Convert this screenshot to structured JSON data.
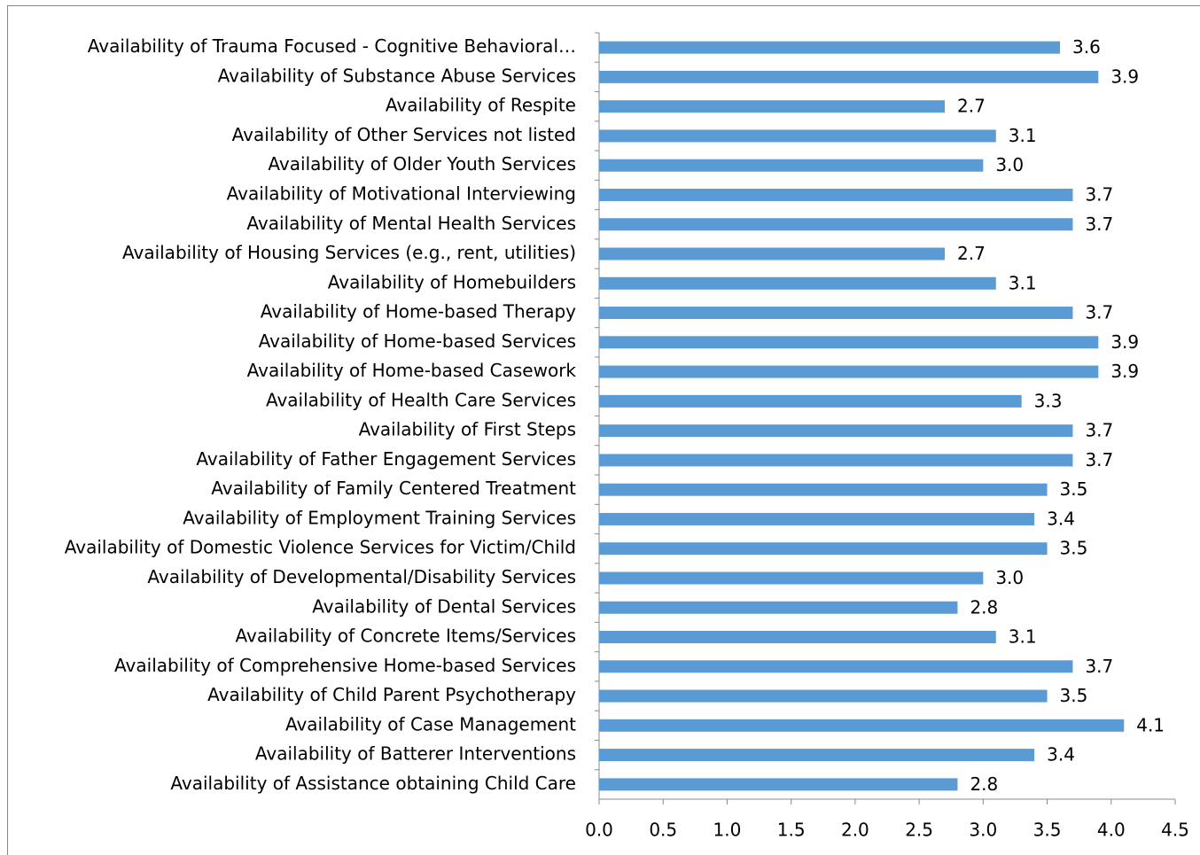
{
  "chart_data": {
    "type": "barh",
    "categories": [
      "Availability of Trauma Focused - Cognitive Behavioral…",
      "Availability of Substance Abuse Services",
      "Availability of Respite",
      "Availability of Other Services not listed",
      "Availability of Older Youth Services",
      "Availability of Motivational Interviewing",
      "Availability of Mental Health Services",
      "Availability of Housing Services (e.g., rent, utilities)",
      "Availability of Homebuilders",
      "Availability of Home-based Therapy",
      "Availability of Home-based Services",
      "Availability of Home-based Casework",
      "Availability of Health Care Services",
      "Availability of First Steps",
      "Availability of Father Engagement Services",
      "Availability of Family Centered Treatment",
      "Availability of Employment Training Services",
      "Availability of Domestic Violence Services for Victim/Child",
      "Availability of Developmental/Disability Services",
      "Availability of Dental Services",
      "Availability of Concrete Items/Services",
      "Availability of Comprehensive Home-based Services",
      "Availability of Child Parent Psychotherapy",
      "Availability of Case Management",
      "Availability of Batterer Interventions",
      "Availability of Assistance obtaining Child Care"
    ],
    "values": [
      3.6,
      3.9,
      2.7,
      3.1,
      3.0,
      3.7,
      3.7,
      2.7,
      3.1,
      3.7,
      3.9,
      3.9,
      3.3,
      3.7,
      3.7,
      3.5,
      3.4,
      3.5,
      3.0,
      2.8,
      3.1,
      3.7,
      3.5,
      4.1,
      3.4,
      2.8
    ],
    "value_labels": [
      "3.6",
      "3.9",
      "2.7",
      "3.1",
      "3.0",
      "3.7",
      "3.7",
      "2.7",
      "3.1",
      "3.7",
      "3.9",
      "3.9",
      "3.3",
      "3.7",
      "3.7",
      "3.5",
      "3.4",
      "3.5",
      "3.0",
      "2.8",
      "3.1",
      "3.7",
      "3.5",
      "4.1",
      "3.4",
      "2.8"
    ],
    "color": "#5b9bd5",
    "xlim": [
      0,
      4.5
    ],
    "xticks": [
      {
        "value": 0,
        "label": "0.0"
      },
      0.5,
      {
        "value": 1,
        "label": "1.0"
      },
      1.5,
      {
        "value": 2,
        "label": "2.0"
      },
      2.5,
      {
        "value": 3,
        "label": "3.0"
      },
      3.5,
      {
        "value": 4,
        "label": "4.0"
      },
      4.5
    ],
    "grid": false
  }
}
